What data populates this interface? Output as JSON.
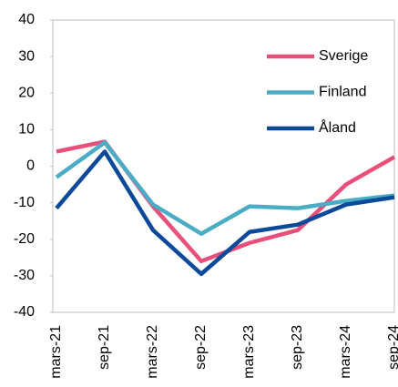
{
  "chart_data": {
    "type": "line",
    "categories": [
      "mars-21",
      "sep-21",
      "mars-22",
      "sep-22",
      "mars-23",
      "sep-23",
      "mars-24",
      "sep-24"
    ],
    "series": [
      {
        "name": "Sverige",
        "color": "#e8507a",
        "values": [
          4,
          6.7,
          -11,
          -26,
          -21,
          -17.5,
          -5,
          2.5
        ]
      },
      {
        "name": "Finland",
        "color": "#4bacc6",
        "values": [
          -3,
          6.5,
          -10.5,
          -18.5,
          -11,
          -11.5,
          -9.5,
          -8
        ]
      },
      {
        "name": "Åland",
        "color": "#0b4a9a",
        "values": [
          -11.5,
          4,
          -17.5,
          -29.5,
          -18,
          -16,
          -10.5,
          -8.5
        ]
      }
    ],
    "ylim": [
      -40,
      40
    ],
    "yticks": [
      -40,
      -30,
      -20,
      -10,
      0,
      10,
      20,
      30,
      40
    ],
    "grid": false,
    "legend": "upper right"
  }
}
